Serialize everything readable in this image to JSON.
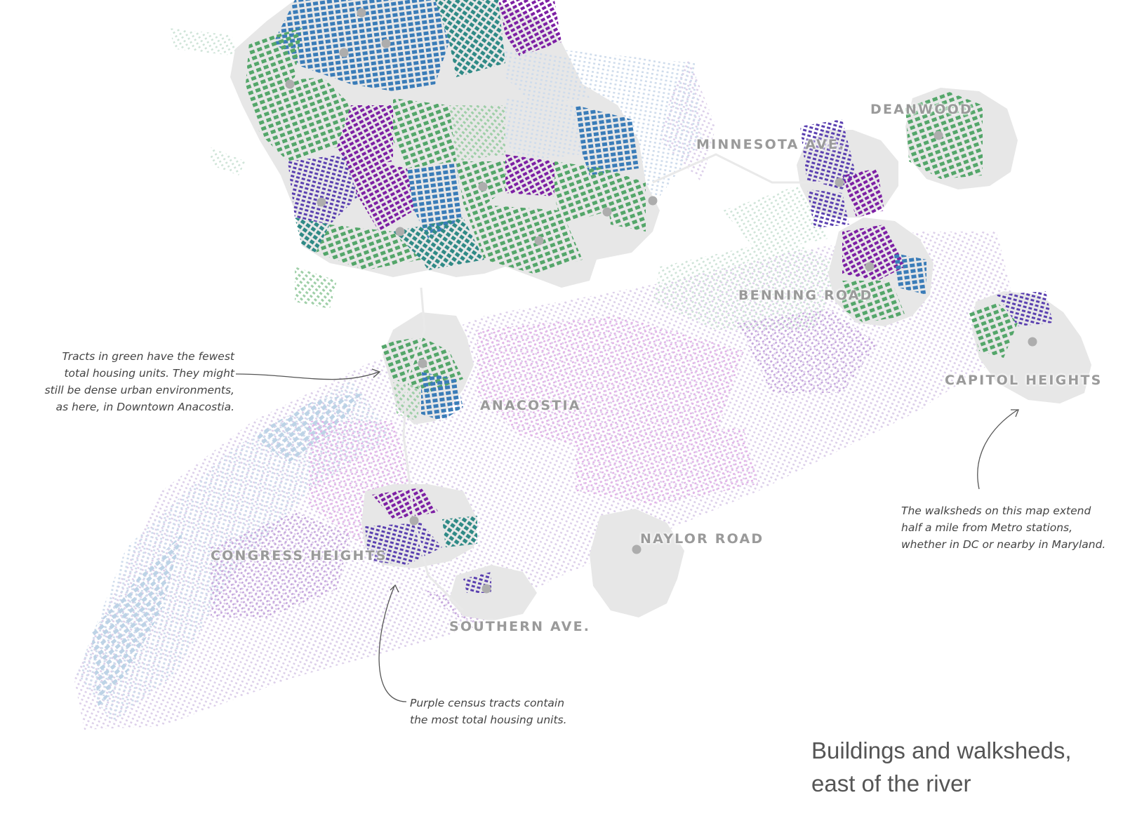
{
  "colors": {
    "walkshed": "#e7e7e7",
    "station_dot": "#adadad",
    "purple_dark": "#7d1fa4",
    "purple_mid": "#5a3fb0",
    "blue": "#3a7cb8",
    "teal": "#2f8a86",
    "green": "#54a66a",
    "label": "#9a9a9a",
    "annotation_text": "#444444"
  },
  "stations": [
    {
      "id": "deanwood",
      "label": "DEANWOOD"
    },
    {
      "id": "minnesota",
      "label": "MINNESOTA AVE."
    },
    {
      "id": "benning",
      "label": "BENNING ROAD"
    },
    {
      "id": "capitol",
      "label": "CAPITOL HEIGHTS"
    },
    {
      "id": "anacostia",
      "label": "ANACOSTIA"
    },
    {
      "id": "naylor",
      "label": "NAYLOR ROAD"
    },
    {
      "id": "congress",
      "label": "CONGRESS HEIGHTS"
    },
    {
      "id": "southern",
      "label": "SOUTHERN AVE."
    }
  ],
  "annotations": {
    "green_tracts": {
      "lines": [
        "Tracts in green have the fewest",
        "total housing units. They might",
        "still be dense urban environments,",
        "as here, in Downtown Anacostia."
      ]
    },
    "walksheds": {
      "lines": [
        "The walksheds on this map extend",
        "half a mile from Metro stations,",
        "whether in DC or nearby in Maryland."
      ]
    },
    "purple_tracts": {
      "lines": [
        "Purple census tracts contain",
        "the most total housing units."
      ]
    }
  },
  "title": {
    "lines": [
      "Buildings and walksheds,",
      "east of the river"
    ]
  }
}
